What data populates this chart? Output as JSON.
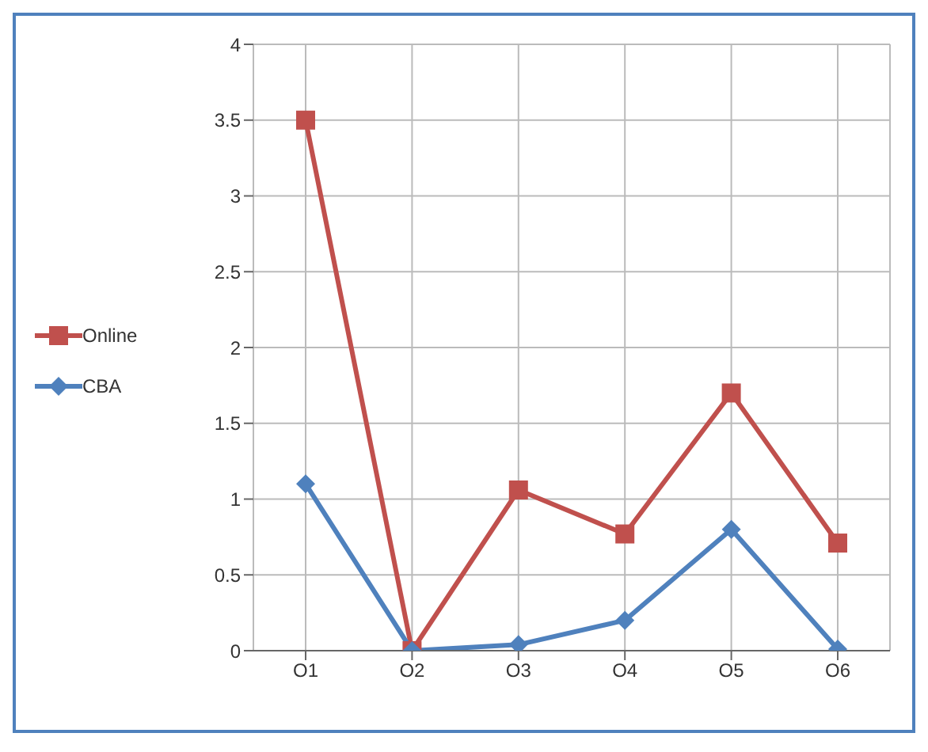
{
  "chart_data": {
    "type": "line",
    "categories": [
      "O1",
      "O2",
      "O3",
      "O4",
      "O5",
      "O6"
    ],
    "series": [
      {
        "name": "Online",
        "color": "#c0504d",
        "marker": "square",
        "values": [
          3.5,
          0,
          1.06,
          0.77,
          1.7,
          0.71
        ]
      },
      {
        "name": "CBA",
        "color": "#4f81bd",
        "marker": "diamond",
        "values": [
          1.1,
          0,
          0.04,
          0.2,
          0.8,
          0.01
        ]
      }
    ],
    "ylim": [
      0,
      4
    ],
    "yticks": [
      0,
      0.5,
      1,
      1.5,
      2,
      2.5,
      3,
      3.5,
      4
    ],
    "grid": true,
    "legend": "left"
  }
}
